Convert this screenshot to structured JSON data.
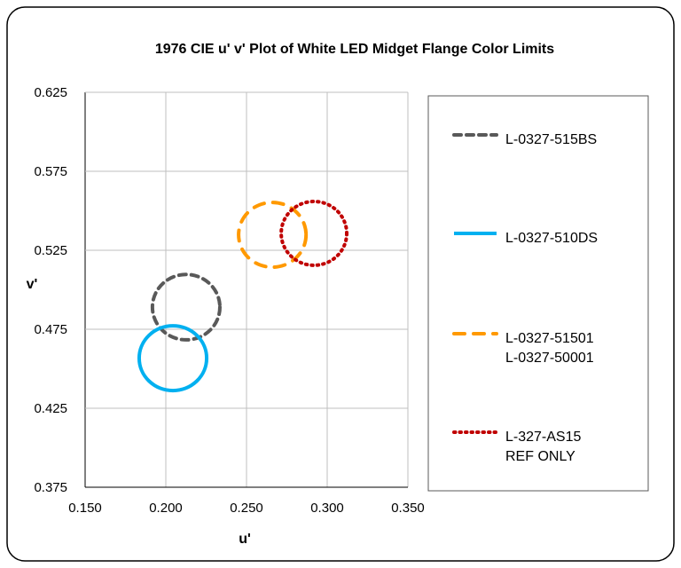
{
  "chart_data": {
    "type": "scatter",
    "title": "1976 CIE u' v' Plot of White LED Midget Flange Color Limits",
    "xlabel": "u'",
    "ylabel": "v'",
    "xlim": [
      0.15,
      0.35
    ],
    "ylim": [
      0.375,
      0.625
    ],
    "xticks": [
      "0.150",
      "0.200",
      "0.250",
      "0.300",
      "0.350"
    ],
    "yticks": [
      "0.625",
      "0.575",
      "0.525",
      "0.475",
      "0.425",
      "0.375"
    ],
    "grid": true,
    "legend_placement": "right",
    "series": [
      {
        "name": "L-0327-515BS",
        "lines": [
          "L-0327-515BS"
        ],
        "color": "#595959",
        "style": "dashed",
        "shape": "ellipse",
        "center": [
          0.2126,
          0.489
        ],
        "radius": [
          0.0209,
          0.0207
        ]
      },
      {
        "name": "L-0327-510DS",
        "lines": [
          "L-0327-510DS"
        ],
        "color": "#00B0F0",
        "style": "solid",
        "shape": "ellipse",
        "center": [
          0.2044,
          0.4567
        ],
        "radius": [
          0.0209,
          0.0205
        ]
      },
      {
        "name": "L-0327-51501 L-0327-50001",
        "lines": [
          "L-0327-51501",
          "L-0327-50001"
        ],
        "color": "#FF9900",
        "style": "long-dash",
        "shape": "ellipse",
        "center": [
          0.266,
          0.5348
        ],
        "radius": [
          0.0209,
          0.0205
        ]
      },
      {
        "name": "L-327-AS15 REF ONLY",
        "lines": [
          "L-327-AS15",
          "REF ONLY"
        ],
        "color": "#C00000",
        "style": "dotted",
        "shape": "ellipse",
        "center": [
          0.2918,
          0.5357
        ],
        "radius": [
          0.0203,
          0.0202
        ]
      }
    ]
  }
}
